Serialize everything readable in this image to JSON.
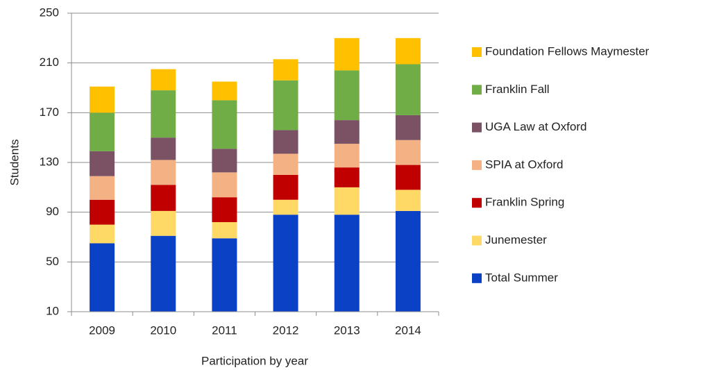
{
  "chart_data": {
    "type": "stacked_bar",
    "x_label": "Participation by year",
    "y_label": "Students",
    "categories": [
      "2009",
      "2010",
      "2011",
      "2012",
      "2013",
      "2014"
    ],
    "series": [
      {
        "name": "Total Summer",
        "color": "#0b41c4",
        "values": [
          65,
          71,
          69,
          88,
          88,
          91
        ]
      },
      {
        "name": "Junemester",
        "color": "#ffd966",
        "values": [
          15,
          20,
          13,
          12,
          22,
          17
        ]
      },
      {
        "name": "Franklin Spring",
        "color": "#c00000",
        "values": [
          20,
          21,
          20,
          20,
          16,
          20
        ]
      },
      {
        "name": "SPIA at Oxford",
        "color": "#f4b183",
        "values": [
          19,
          20,
          20,
          17,
          19,
          20
        ]
      },
      {
        "name": "UGA Law at Oxford",
        "color": "#7a5264",
        "values": [
          20,
          18,
          19,
          19,
          19,
          20
        ]
      },
      {
        "name": "Franklin Fall",
        "color": "#70ad47",
        "values": [
          31,
          38,
          39,
          40,
          40,
          41
        ]
      },
      {
        "name": "Foundation Fellows Maymester",
        "color": "#ffc000",
        "values": [
          21,
          17,
          15,
          17,
          26,
          21
        ]
      }
    ],
    "ylim": [
      10,
      250
    ],
    "yticks": [
      10,
      50,
      90,
      130,
      170,
      210,
      250
    ],
    "grid": true,
    "legend": "right"
  }
}
